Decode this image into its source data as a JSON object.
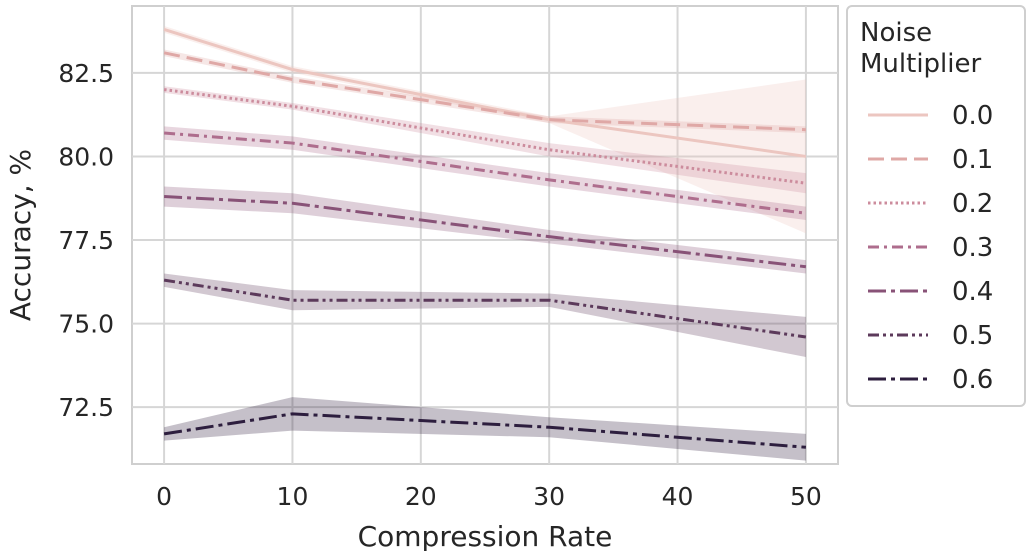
{
  "chart_data": {
    "type": "line",
    "title": "",
    "xlabel": "Compression Rate",
    "ylabel": "Accuracy, %",
    "xlim": [
      -2.5,
      52.5
    ],
    "ylim": [
      70.8,
      84.5
    ],
    "xticks": [
      0,
      10,
      20,
      30,
      40,
      50
    ],
    "yticks": [
      72.5,
      75.0,
      77.5,
      80.0,
      82.5
    ],
    "xtick_labels": [
      "0",
      "10",
      "20",
      "30",
      "40",
      "50"
    ],
    "ytick_labels": [
      "72.5",
      "75.0",
      "77.5",
      "80.0",
      "82.5"
    ],
    "grid": true,
    "legend": {
      "title": "Noise\nMultiplier",
      "placement": "outside-right"
    },
    "x": [
      0,
      10,
      30,
      50
    ],
    "series": [
      {
        "name": "0.0",
        "color": "#ecc6c0",
        "dash": "solid",
        "values": [
          83.8,
          82.6,
          81.1,
          80.0
        ],
        "ci_low": [
          83.7,
          82.5,
          81.0,
          77.7
        ],
        "ci_high": [
          83.9,
          82.7,
          81.2,
          82.3
        ]
      },
      {
        "name": "0.1",
        "color": "#dfa8a6",
        "dash": "long-dash",
        "values": [
          83.1,
          82.3,
          81.1,
          80.8
        ],
        "ci_low": [
          83.0,
          82.2,
          81.0,
          80.7
        ],
        "ci_high": [
          83.2,
          82.4,
          81.2,
          80.9
        ]
      },
      {
        "name": "0.2",
        "color": "#cc8c9d",
        "dash": "dotted",
        "values": [
          82.0,
          81.5,
          80.2,
          79.2
        ],
        "ci_low": [
          81.9,
          81.4,
          80.0,
          78.9
        ],
        "ci_high": [
          82.1,
          81.6,
          80.4,
          79.5
        ]
      },
      {
        "name": "0.3",
        "color": "#ae6d8d",
        "dash": "dash-dot",
        "values": [
          80.7,
          80.4,
          79.3,
          78.3
        ],
        "ci_low": [
          80.5,
          80.2,
          79.1,
          78.1
        ],
        "ci_high": [
          80.9,
          80.6,
          79.5,
          78.5
        ]
      },
      {
        "name": "0.4",
        "color": "#885277",
        "dash": "long-dash-dot",
        "values": [
          78.8,
          78.6,
          77.6,
          76.7
        ],
        "ci_low": [
          78.5,
          78.3,
          77.4,
          76.5
        ],
        "ci_high": [
          79.1,
          78.9,
          77.8,
          76.9
        ]
      },
      {
        "name": "0.5",
        "color": "#5c3a5b",
        "dash": "dash-dot-dot",
        "values": [
          76.3,
          75.7,
          75.7,
          74.6
        ],
        "ci_low": [
          76.1,
          75.4,
          75.5,
          74.0
        ],
        "ci_high": [
          76.5,
          76.0,
          75.9,
          75.2
        ]
      },
      {
        "name": "0.6",
        "color": "#2d1e3e",
        "dash": "long-dash-dot",
        "values": [
          71.7,
          72.3,
          71.9,
          71.3
        ],
        "ci_low": [
          71.5,
          71.8,
          71.6,
          70.9
        ],
        "ci_high": [
          71.9,
          72.8,
          72.2,
          71.7
        ]
      }
    ]
  }
}
